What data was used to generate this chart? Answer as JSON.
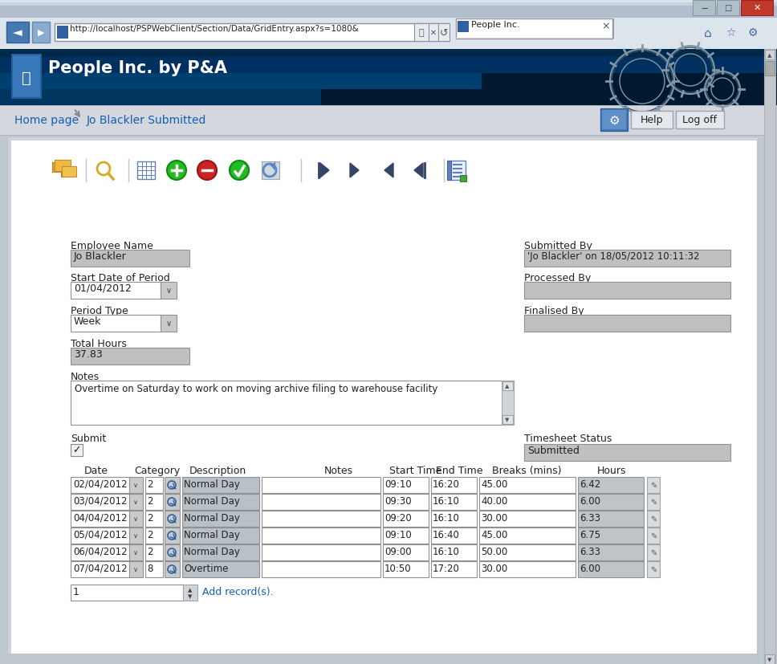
{
  "title": "People Inc. by P&A",
  "url": "http://localhost/PSPWebClient/Section/Data/GridEntry.aspx?s=1080&",
  "tab_title": "People Inc.",
  "nav_items": [
    "Home page",
    "Jo Blackler Submitted"
  ],
  "employee_name": "Jo Blackler",
  "start_date": "01/04/2012",
  "period_type": "Week",
  "total_hours": "37.83",
  "submitted_by": "'Jo Blackler' on 18/05/2012 10:11:32",
  "processed_by": "",
  "finalised_by": "",
  "notes_text": "Overtime on Saturday to work on moving archive filing to warehouse facility",
  "timesheet_status": "Submitted",
  "table_headers": [
    "Date",
    "Category",
    "Description",
    "Notes",
    "Start Time",
    "End Time",
    "Breaks (mins)",
    "Hours"
  ],
  "table_rows": [
    [
      "02/04/2012",
      "2",
      "Normal Day",
      "",
      "09:10",
      "16:20",
      "45.00",
      "6.42"
    ],
    [
      "03/04/2012",
      "2",
      "Normal Day",
      "",
      "09:30",
      "16:10",
      "40.00",
      "6.00"
    ],
    [
      "04/04/2012",
      "2",
      "Normal Day",
      "",
      "09:20",
      "16:10",
      "30.00",
      "6.33"
    ],
    [
      "05/04/2012",
      "2",
      "Normal Day",
      "",
      "09:10",
      "16:40",
      "45.00",
      "6.75"
    ],
    [
      "06/04/2012",
      "2",
      "Normal Day",
      "",
      "09:00",
      "16:10",
      "50.00",
      "6.33"
    ],
    [
      "07/04/2012",
      "8",
      "Overtime",
      "",
      "10:50",
      "17:20",
      "30.00",
      "6.00"
    ]
  ],
  "add_records_text": "Add record(s).",
  "colors": {
    "win_chrome": "#c0c8d0",
    "titlebar_top": "#b8c8d8",
    "titlebar_btn_x": "#c0392b",
    "browser_bar": "#dce4ec",
    "header_dark": "#003060",
    "header_mid": "#005090",
    "nav_bg": "#d8dde4",
    "nav_sep": "#b8bfc8",
    "content_bg": "#ffffff",
    "content_border": "#a0a8b4",
    "field_gray": "#bfc0c0",
    "field_white": "#ffffff",
    "field_border": "#909090",
    "desc_field": "#b8c0c8",
    "hours_field": "#c0c4c8",
    "link_color": "#1060b0",
    "label_color": "#222222",
    "scrollbar_track": "#c8cccc",
    "scrollbar_thumb": "#a0a8a8",
    "gear_line": "#405060",
    "gear_line2": "#8098a8"
  }
}
